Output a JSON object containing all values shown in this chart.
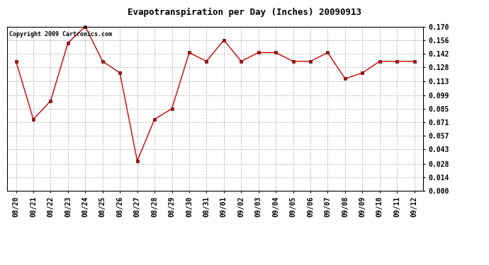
{
  "title": "Evapotranspiration per Day (Inches) 20090913",
  "copyright": "Copyright 2009 Cartronics.com",
  "labels": [
    "08/20",
    "08/21",
    "08/22",
    "08/23",
    "08/24",
    "08/25",
    "08/26",
    "08/27",
    "08/28",
    "08/29",
    "08/30",
    "08/31",
    "09/01",
    "09/02",
    "09/03",
    "09/04",
    "09/05",
    "09/06",
    "09/07",
    "09/08",
    "09/09",
    "09/10",
    "09/11",
    "09/12"
  ],
  "values": [
    0.134,
    0.074,
    0.093,
    0.153,
    0.17,
    0.134,
    0.122,
    0.031,
    0.074,
    0.085,
    0.143,
    0.134,
    0.156,
    0.134,
    0.143,
    0.143,
    0.134,
    0.134,
    0.143,
    0.116,
    0.122,
    0.134,
    0.134,
    0.134
  ],
  "ylim": [
    0.0,
    0.17
  ],
  "yticks": [
    0.0,
    0.014,
    0.028,
    0.043,
    0.057,
    0.071,
    0.085,
    0.099,
    0.113,
    0.128,
    0.142,
    0.156,
    0.17
  ],
  "line_color": "#cc0000",
  "marker": "s",
  "marker_size": 2.5,
  "grid_color": "#bbbbbb",
  "bg_color": "#ffffff",
  "title_fontsize": 9,
  "tick_fontsize": 7,
  "copyright_fontsize": 6
}
